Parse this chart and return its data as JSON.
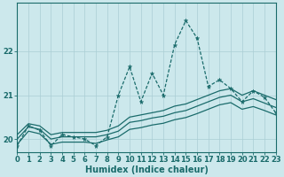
{
  "background_color": "#cce8ec",
  "grid_color": "#aacdd4",
  "line_color": "#1a6b6b",
  "x_min": 0,
  "x_max": 23,
  "y_min": 19.7,
  "y_max": 23.1,
  "y_ticks": [
    20,
    21,
    22
  ],
  "xlabel": "Humidex (Indice chaleur)",
  "xlabel_fontsize": 7.0,
  "tick_fontsize": 6.0,
  "figsize": [
    3.2,
    2.0
  ],
  "dpi": 100,
  "spiky_x": [
    0,
    1,
    2,
    3,
    4,
    5,
    6,
    7,
    8,
    9,
    10,
    11,
    12,
    13,
    14,
    15,
    16,
    17,
    18,
    19,
    20,
    21,
    22,
    23
  ],
  "spiky_y": [
    19.85,
    20.3,
    20.2,
    19.85,
    20.1,
    20.05,
    20.0,
    19.85,
    20.05,
    21.0,
    21.65,
    20.85,
    21.5,
    21.0,
    22.15,
    22.7,
    22.3,
    21.2,
    21.35,
    21.15,
    20.85,
    21.1,
    20.95,
    20.6
  ],
  "upper_x": [
    0,
    1,
    2,
    3,
    4,
    5,
    6,
    7,
    8,
    9,
    10,
    11,
    12,
    13,
    14,
    15,
    16,
    17,
    18,
    19,
    20,
    21,
    22,
    23
  ],
  "upper_y": [
    20.1,
    20.35,
    20.3,
    20.1,
    20.15,
    20.15,
    20.15,
    20.15,
    20.2,
    20.3,
    20.5,
    20.55,
    20.6,
    20.65,
    20.75,
    20.8,
    20.9,
    21.0,
    21.1,
    21.15,
    21.0,
    21.1,
    21.0,
    20.9
  ],
  "mid_x": [
    0,
    1,
    2,
    3,
    4,
    5,
    6,
    7,
    8,
    9,
    10,
    11,
    12,
    13,
    14,
    15,
    16,
    17,
    18,
    19,
    20,
    21,
    22,
    23
  ],
  "mid_y": [
    20.0,
    20.28,
    20.22,
    20.0,
    20.05,
    20.05,
    20.05,
    20.05,
    20.1,
    20.18,
    20.38,
    20.42,
    20.48,
    20.52,
    20.6,
    20.65,
    20.75,
    20.85,
    20.95,
    21.0,
    20.85,
    20.92,
    20.82,
    20.72
  ],
  "lower_x": [
    0,
    1,
    2,
    3,
    4,
    5,
    6,
    7,
    8,
    9,
    10,
    11,
    12,
    13,
    14,
    15,
    16,
    17,
    18,
    19,
    20,
    21,
    22,
    23
  ],
  "lower_y": [
    19.88,
    20.18,
    20.12,
    19.88,
    19.93,
    19.93,
    19.93,
    19.9,
    19.98,
    20.05,
    20.22,
    20.26,
    20.32,
    20.36,
    20.44,
    20.49,
    20.58,
    20.68,
    20.78,
    20.83,
    20.68,
    20.74,
    20.65,
    20.55
  ]
}
